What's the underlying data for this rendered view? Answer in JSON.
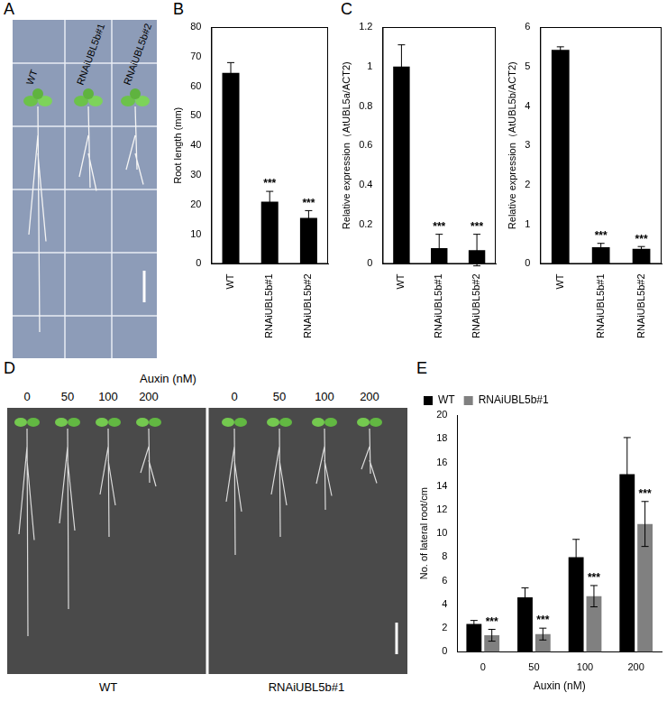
{
  "images": [
    {
      "title": "A",
      "labels": [
        "WT",
        "RNAiUBL5b#1",
        "RNAiUBL5b#2"
      ]
    },
    {
      "title": "D",
      "header": "Auxin (nM)",
      "labels": [
        "0",
        "50",
        "100",
        "200",
        "0",
        "50",
        "100",
        "200"
      ],
      "groups": [
        "WT",
        "RNAiUBL5b#1"
      ]
    }
  ],
  "chart_data": [
    {
      "type": "bar",
      "title": "B",
      "categories": [
        "WT",
        "RNAiUBL5b#1",
        "RNAiUBL5b#2"
      ],
      "values": [
        64.5,
        21,
        15.5
      ],
      "errors": [
        3.5,
        3.5,
        2.5
      ],
      "significance": [
        null,
        "***",
        "***"
      ],
      "color": "#000000",
      "ylabel": "Root length (mm)",
      "ylim": [
        0,
        80
      ],
      "yticks": [
        0,
        10,
        20,
        30,
        40,
        50,
        60,
        70,
        80
      ],
      "grid": false
    },
    {
      "type": "bar",
      "title": "C",
      "categories": [
        "WT",
        "RNAiUBL5b#1",
        "RNAiUBL5b#2"
      ],
      "values": [
        1.0,
        0.08,
        0.07
      ],
      "errors": [
        0.11,
        0.07,
        0.08
      ],
      "significance": [
        null,
        "***",
        "***"
      ],
      "color": "#000000",
      "ylabel": "Relative expression（AtUBL5a/ACT2)",
      "ylim": [
        0,
        1.2
      ],
      "yticks": [
        0,
        0.2,
        0.4,
        0.6,
        0.8,
        1,
        1.2
      ],
      "grid": false
    },
    {
      "type": "bar",
      "categories": [
        "WT",
        "RNAiUBL5b#1",
        "RNAiUBL5b#2"
      ],
      "values": [
        5.42,
        0.42,
        0.38
      ],
      "errors": [
        0.08,
        0.1,
        0.06
      ],
      "significance": [
        null,
        "***",
        "***"
      ],
      "color": "#000000",
      "ylabel": "Relative expression（AtUBL5b/ACT2)",
      "ylim": [
        0,
        6
      ],
      "yticks": [
        0,
        1,
        2,
        3,
        4,
        5,
        6
      ],
      "grid": false
    },
    {
      "type": "bar",
      "title": "E",
      "categories": [
        "0",
        "50",
        "100",
        "200"
      ],
      "xlabel": "Auxin (nM)",
      "ylabel": "No. of lateral root/cm",
      "series": [
        {
          "name": "WT",
          "color": "#000000",
          "values": [
            2.35,
            4.6,
            8,
            15
          ],
          "errors": [
            0.3,
            0.8,
            1.5,
            3.1
          ]
        },
        {
          "name": "RNAiUBL5b#1",
          "color": "#808080",
          "values": [
            1.4,
            1.5,
            4.7,
            10.8
          ],
          "errors": [
            0.5,
            0.5,
            0.9,
            1.9
          ],
          "significance": [
            "***",
            "***",
            "***",
            "***"
          ]
        }
      ],
      "ylim": [
        0,
        20
      ],
      "yticks": [
        0,
        2,
        4,
        6,
        8,
        10,
        12,
        14,
        16,
        18,
        20
      ],
      "grid": false,
      "legend": "upper left"
    }
  ]
}
